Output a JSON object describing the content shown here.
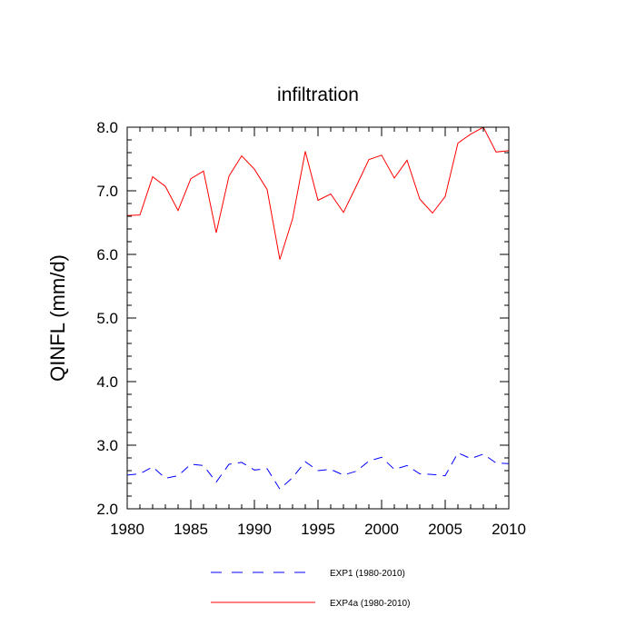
{
  "chart_data": {
    "type": "line",
    "title": "infiltration",
    "xlabel": "",
    "ylabel": "QINFL  (mm/d)",
    "xlim": [
      1980,
      2010
    ],
    "ylim": [
      2.0,
      8.0
    ],
    "x_ticks": [
      1980,
      1985,
      1990,
      1995,
      2000,
      2005,
      2010
    ],
    "y_ticks": [
      "2.0",
      "3.0",
      "4.0",
      "5.0",
      "6.0",
      "7.0",
      "8.0"
    ],
    "grid": false,
    "legend_position": "bottom",
    "x": [
      1980,
      1981,
      1982,
      1983,
      1984,
      1985,
      1986,
      1987,
      1988,
      1989,
      1990,
      1991,
      1992,
      1993,
      1994,
      1995,
      1996,
      1997,
      1998,
      1999,
      2000,
      2001,
      2002,
      2003,
      2004,
      2005,
      2006,
      2007,
      2008,
      2009,
      2010
    ],
    "series": [
      {
        "name": "EXP1 (1980-2010)",
        "color": "#0000ff",
        "line_style": "dashed",
        "values": [
          2.53,
          2.55,
          2.66,
          2.48,
          2.52,
          2.7,
          2.68,
          2.42,
          2.7,
          2.73,
          2.61,
          2.63,
          2.31,
          2.49,
          2.74,
          2.6,
          2.62,
          2.53,
          2.59,
          2.75,
          2.81,
          2.62,
          2.68,
          2.55,
          2.54,
          2.52,
          2.88,
          2.79,
          2.86,
          2.72,
          2.71
        ]
      },
      {
        "name": "EXP4a (1980-2010)",
        "color": "#ff0000",
        "line_style": "solid",
        "values": [
          6.61,
          6.62,
          7.22,
          7.07,
          6.69,
          7.19,
          7.31,
          6.34,
          7.23,
          7.55,
          7.34,
          7.02,
          5.92,
          6.56,
          7.62,
          6.85,
          6.95,
          6.66,
          7.07,
          7.49,
          7.56,
          7.2,
          7.48,
          6.87,
          6.65,
          6.91,
          7.75,
          7.89,
          8.0,
          7.61,
          7.63
        ]
      }
    ]
  }
}
